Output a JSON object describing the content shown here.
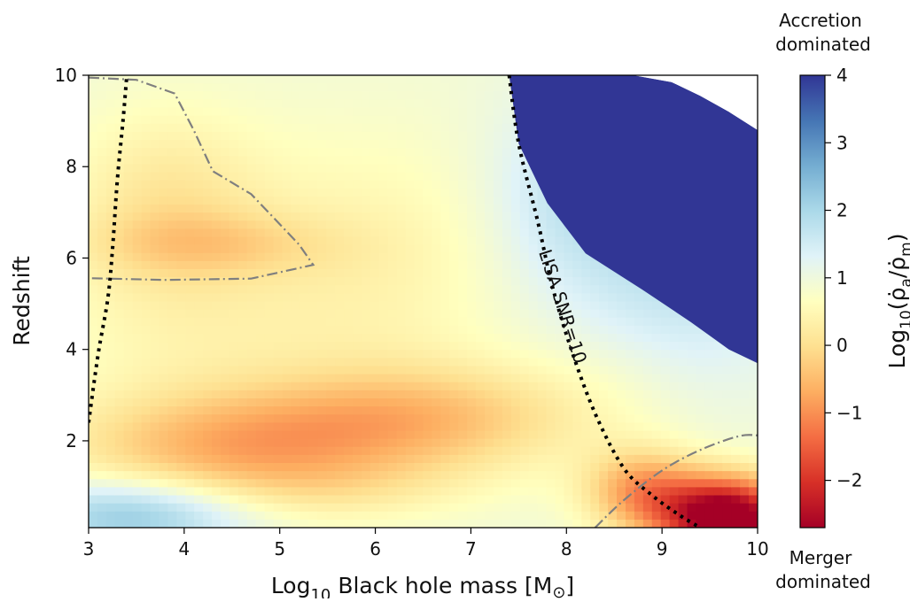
{
  "chart_data": {
    "type": "heatmap",
    "title": "",
    "xlabel": {
      "prefix": "Log",
      "sub": "10",
      "rest": " Black hole mass [M",
      "sun": "⊙",
      "close": "]"
    },
    "ylabel": "Redshift",
    "xlim": [
      3,
      10
    ],
    "ylim": [
      0.1,
      10
    ],
    "x_ticks": [
      3,
      4,
      5,
      6,
      7,
      8,
      9,
      10
    ],
    "y_ticks": [
      2,
      4,
      6,
      8,
      10
    ],
    "x_tick_labels": [
      "3",
      "4",
      "5",
      "6",
      "7",
      "8",
      "9",
      "10"
    ],
    "y_tick_labels": [
      "2",
      "4",
      "6",
      "8",
      "10"
    ],
    "colorbar": {
      "label": "Log10(ρ̇a/ρ̇m)",
      "range": [
        -2.7,
        4.0
      ],
      "ticks": [
        -2,
        -1,
        0,
        1,
        2,
        3,
        4
      ],
      "tick_labels": [
        "−2",
        "−1",
        "0",
        "1",
        "2",
        "3",
        "4"
      ],
      "colormap": "RdYlBu",
      "top_note": [
        "Accretion",
        "dominated"
      ],
      "bottom_note": [
        "Merger",
        "dominated"
      ]
    },
    "annotations": [
      {
        "text": "LISA SNR=10",
        "x": 7.9,
        "y": 4.9,
        "rotation": 72
      }
    ],
    "lisa_snr_curve_left": {
      "style": "dotted",
      "points": [
        [
          3.0,
          2.4
        ],
        [
          3.1,
          3.9
        ],
        [
          3.2,
          5.1
        ],
        [
          3.25,
          6.2
        ],
        [
          3.3,
          7.7
        ],
        [
          3.36,
          9.0
        ],
        [
          3.4,
          10.0
        ]
      ]
    },
    "lisa_snr_curve_right": {
      "style": "dotted",
      "points": [
        [
          7.4,
          10.0
        ],
        [
          7.5,
          8.5
        ],
        [
          7.7,
          6.8
        ],
        [
          7.85,
          5.4
        ],
        [
          8.05,
          4.0
        ],
        [
          8.3,
          2.6
        ],
        [
          8.6,
          1.4
        ],
        [
          8.9,
          0.8
        ],
        [
          9.2,
          0.35
        ],
        [
          9.4,
          0.1
        ]
      ]
    },
    "zero_contour_upper": {
      "style": "dash-dot",
      "points": [
        [
          3.0,
          9.95
        ],
        [
          3.5,
          9.9
        ],
        [
          3.9,
          9.6
        ],
        [
          4.1,
          8.8
        ],
        [
          4.3,
          7.9
        ],
        [
          4.7,
          7.4
        ],
        [
          5.2,
          6.3
        ],
        [
          5.35,
          5.85
        ],
        [
          4.7,
          5.55
        ],
        [
          3.8,
          5.52
        ],
        [
          3.0,
          5.56
        ]
      ]
    },
    "zero_contour_lower": {
      "style": "dash-dot",
      "points": [
        [
          8.3,
          0.1
        ],
        [
          8.6,
          0.7
        ],
        [
          9.0,
          1.35
        ],
        [
          9.4,
          1.8
        ],
        [
          9.8,
          2.1
        ],
        [
          10.0,
          2.12
        ]
      ]
    },
    "saturated_region": {
      "points": [
        [
          7.4,
          10.0
        ],
        [
          7.5,
          8.5
        ],
        [
          7.8,
          7.2
        ],
        [
          8.2,
          6.1
        ],
        [
          8.8,
          5.3
        ],
        [
          9.3,
          4.6
        ],
        [
          9.7,
          4.0
        ],
        [
          10.0,
          3.7
        ],
        [
          10.0,
          8.8
        ],
        [
          9.7,
          9.2
        ],
        [
          9.4,
          9.55
        ],
        [
          9.1,
          9.85
        ],
        [
          8.7,
          10.0
        ]
      ]
    },
    "blank_region": {
      "points": [
        [
          8.7,
          10.0
        ],
        [
          9.1,
          9.85
        ],
        [
          9.4,
          9.55
        ],
        [
          9.7,
          9.2
        ],
        [
          10.0,
          8.8
        ],
        [
          10.0,
          10.0
        ]
      ]
    },
    "field_blobs": [
      {
        "x": 6.0,
        "y": 5.8,
        "sx": 1.4,
        "sy": 3.0,
        "value": 0.45
      },
      {
        "x": 4.0,
        "y": 5.0,
        "sx": 1.5,
        "sy": 3.2,
        "value": 0.5
      },
      {
        "x": 3.8,
        "y": 7.3,
        "sx": 1.0,
        "sy": 2.0,
        "value": 0.35
      },
      {
        "x": 4.3,
        "y": 6.3,
        "sx": 1.3,
        "sy": 0.7,
        "value": 0.35
      },
      {
        "x": 6.5,
        "y": 2.5,
        "sx": 1.8,
        "sy": 1.2,
        "value": -0.3
      },
      {
        "x": 4.5,
        "y": 1.8,
        "sx": 1.8,
        "sy": 1.2,
        "value": -0.4
      },
      {
        "x": 3.5,
        "y": 0.4,
        "sx": 1.2,
        "sy": 0.8,
        "value": 2.4
      },
      {
        "x": 5.5,
        "y": 0.9,
        "sx": 1.5,
        "sy": 0.7,
        "value": 0.6
      },
      {
        "x": 9.7,
        "y": 0.3,
        "sx": 0.7,
        "sy": 0.9,
        "value": -3.3
      },
      {
        "x": 8.8,
        "y": 0.9,
        "sx": 0.6,
        "sy": 0.9,
        "value": -0.8
      },
      {
        "x": 9.2,
        "y": 6.0,
        "sx": 1.2,
        "sy": 2.6,
        "value": 1.8
      },
      {
        "x": 8.0,
        "y": 7.5,
        "sx": 0.8,
        "sy": 2.0,
        "value": 1.6
      },
      {
        "x": 8.5,
        "y": 3.6,
        "sx": 0.9,
        "sy": 1.3,
        "value": 0.8
      }
    ],
    "field_base": 0.95,
    "colormap_stops": [
      "#a50026",
      "#d73027",
      "#f46d43",
      "#fdae61",
      "#fee090",
      "#ffffbf",
      "#e0f3f8",
      "#abd9e9",
      "#74add1",
      "#4575b4",
      "#313695"
    ]
  }
}
